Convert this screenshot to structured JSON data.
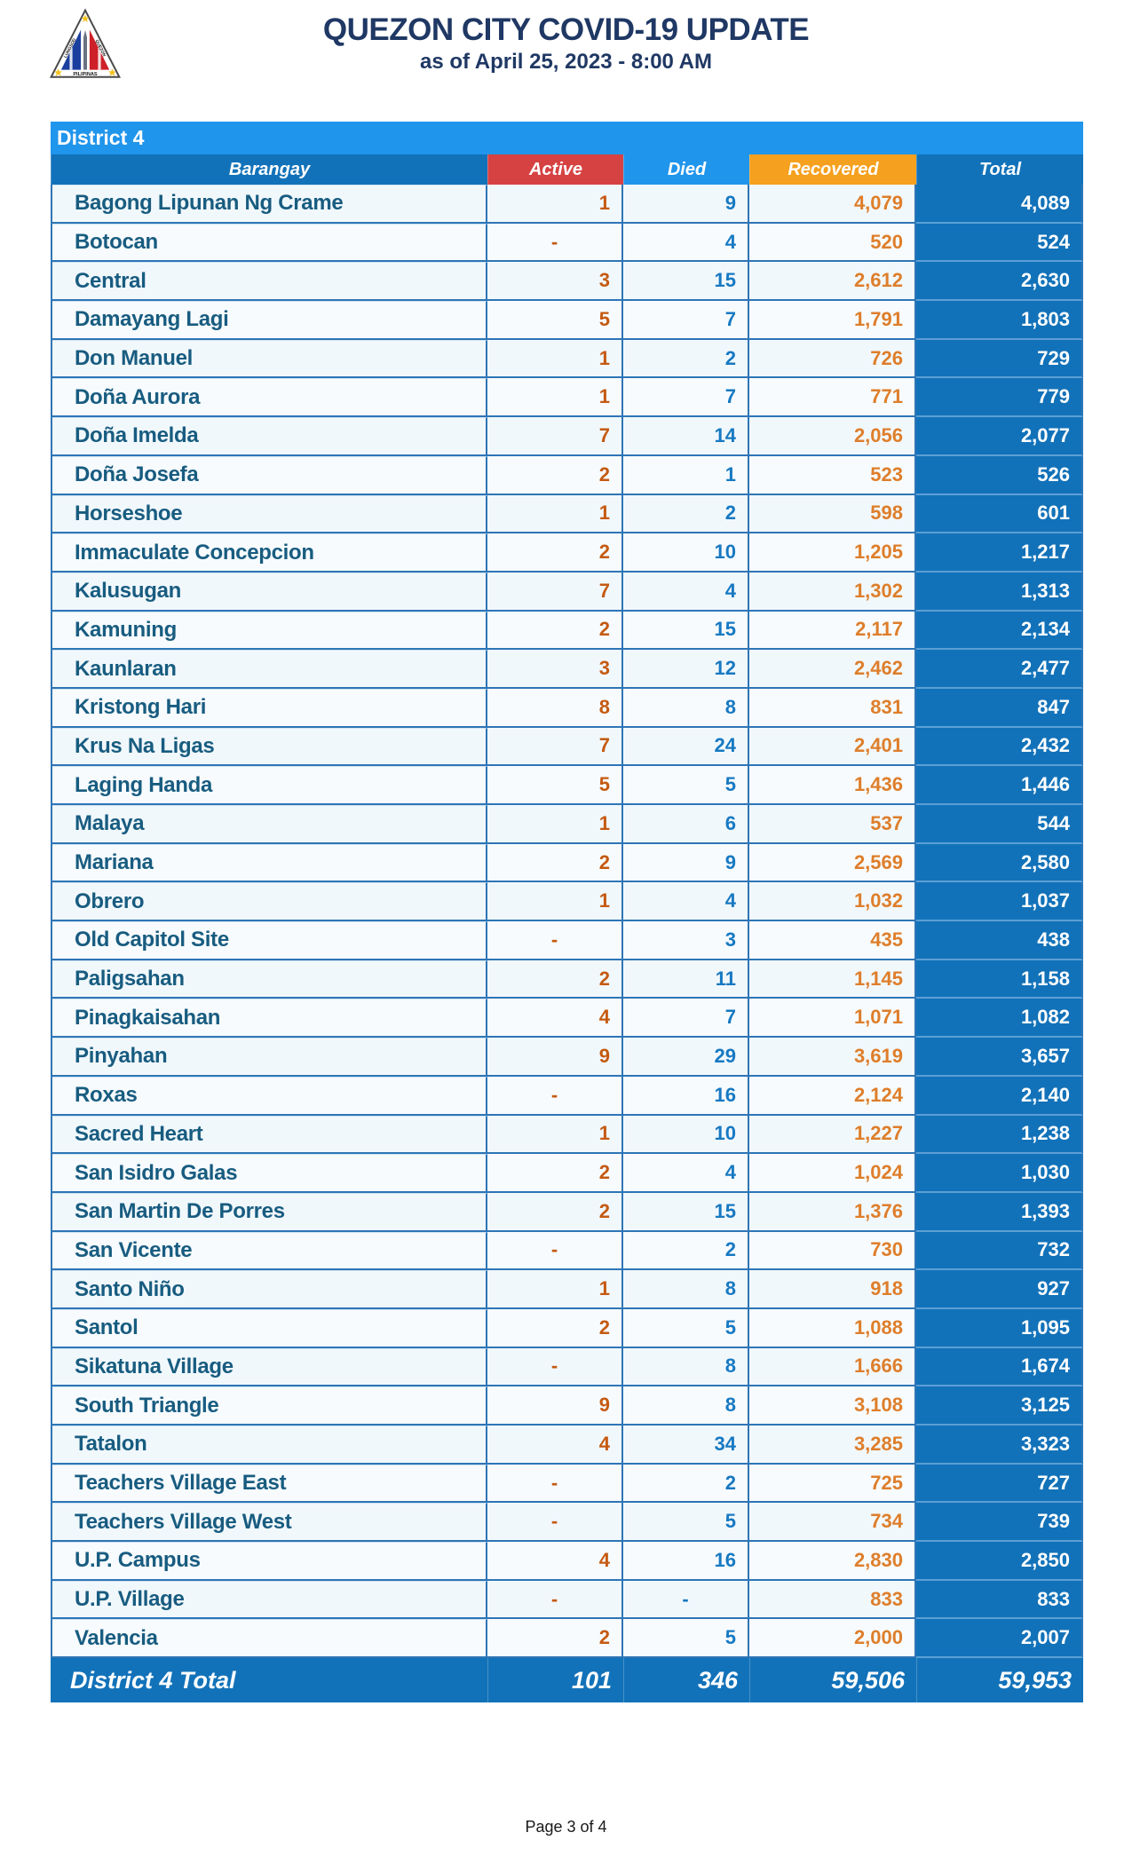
{
  "header": {
    "title": "QUEZON CITY COVID-19 UPDATE",
    "subtitle": "as of April 25, 2023 - 8:00 AM",
    "logo": {
      "arc_left": "LUNGSOD",
      "arc_right": "QUEZON",
      "bottom": "PILIPINAS"
    }
  },
  "table": {
    "district_label": "District 4",
    "columns": {
      "barangay": "Barangay",
      "active": "Active",
      "died": "Died",
      "recovered": "Recovered",
      "total": "Total"
    },
    "rows": [
      {
        "barangay": "Bagong Lipunan Ng Crame",
        "active": "1",
        "died": "9",
        "recovered": "4,079",
        "total": "4,089"
      },
      {
        "barangay": "Botocan",
        "active": "-",
        "died": "4",
        "recovered": "520",
        "total": "524"
      },
      {
        "barangay": "Central",
        "active": "3",
        "died": "15",
        "recovered": "2,612",
        "total": "2,630"
      },
      {
        "barangay": "Damayang Lagi",
        "active": "5",
        "died": "7",
        "recovered": "1,791",
        "total": "1,803"
      },
      {
        "barangay": "Don Manuel",
        "active": "1",
        "died": "2",
        "recovered": "726",
        "total": "729"
      },
      {
        "barangay": "Doña Aurora",
        "active": "1",
        "died": "7",
        "recovered": "771",
        "total": "779"
      },
      {
        "barangay": "Doña Imelda",
        "active": "7",
        "died": "14",
        "recovered": "2,056",
        "total": "2,077"
      },
      {
        "barangay": "Doña Josefa",
        "active": "2",
        "died": "1",
        "recovered": "523",
        "total": "526"
      },
      {
        "barangay": "Horseshoe",
        "active": "1",
        "died": "2",
        "recovered": "598",
        "total": "601"
      },
      {
        "barangay": "Immaculate Concepcion",
        "active": "2",
        "died": "10",
        "recovered": "1,205",
        "total": "1,217"
      },
      {
        "barangay": "Kalusugan",
        "active": "7",
        "died": "4",
        "recovered": "1,302",
        "total": "1,313"
      },
      {
        "barangay": "Kamuning",
        "active": "2",
        "died": "15",
        "recovered": "2,117",
        "total": "2,134"
      },
      {
        "barangay": "Kaunlaran",
        "active": "3",
        "died": "12",
        "recovered": "2,462",
        "total": "2,477"
      },
      {
        "barangay": "Kristong Hari",
        "active": "8",
        "died": "8",
        "recovered": "831",
        "total": "847"
      },
      {
        "barangay": "Krus Na Ligas",
        "active": "7",
        "died": "24",
        "recovered": "2,401",
        "total": "2,432"
      },
      {
        "barangay": "Laging Handa",
        "active": "5",
        "died": "5",
        "recovered": "1,436",
        "total": "1,446"
      },
      {
        "barangay": "Malaya",
        "active": "1",
        "died": "6",
        "recovered": "537",
        "total": "544"
      },
      {
        "barangay": "Mariana",
        "active": "2",
        "died": "9",
        "recovered": "2,569",
        "total": "2,580"
      },
      {
        "barangay": "Obrero",
        "active": "1",
        "died": "4",
        "recovered": "1,032",
        "total": "1,037"
      },
      {
        "barangay": "Old Capitol Site",
        "active": "-",
        "died": "3",
        "recovered": "435",
        "total": "438"
      },
      {
        "barangay": "Paligsahan",
        "active": "2",
        "died": "11",
        "recovered": "1,145",
        "total": "1,158"
      },
      {
        "barangay": "Pinagkaisahan",
        "active": "4",
        "died": "7",
        "recovered": "1,071",
        "total": "1,082"
      },
      {
        "barangay": "Pinyahan",
        "active": "9",
        "died": "29",
        "recovered": "3,619",
        "total": "3,657"
      },
      {
        "barangay": "Roxas",
        "active": "-",
        "died": "16",
        "recovered": "2,124",
        "total": "2,140"
      },
      {
        "barangay": "Sacred Heart",
        "active": "1",
        "died": "10",
        "recovered": "1,227",
        "total": "1,238"
      },
      {
        "barangay": "San Isidro Galas",
        "active": "2",
        "died": "4",
        "recovered": "1,024",
        "total": "1,030"
      },
      {
        "barangay": "San Martin De Porres",
        "active": "2",
        "died": "15",
        "recovered": "1,376",
        "total": "1,393"
      },
      {
        "barangay": "San Vicente",
        "active": "-",
        "died": "2",
        "recovered": "730",
        "total": "732"
      },
      {
        "barangay": "Santo Niño",
        "active": "1",
        "died": "8",
        "recovered": "918",
        "total": "927"
      },
      {
        "barangay": "Santol",
        "active": "2",
        "died": "5",
        "recovered": "1,088",
        "total": "1,095"
      },
      {
        "barangay": "Sikatuna Village",
        "active": "-",
        "died": "8",
        "recovered": "1,666",
        "total": "1,674"
      },
      {
        "barangay": "South Triangle",
        "active": "9",
        "died": "8",
        "recovered": "3,108",
        "total": "3,125"
      },
      {
        "barangay": "Tatalon",
        "active": "4",
        "died": "34",
        "recovered": "3,285",
        "total": "3,323"
      },
      {
        "barangay": "Teachers Village East",
        "active": "-",
        "died": "2",
        "recovered": "725",
        "total": "727"
      },
      {
        "barangay": "Teachers Village West",
        "active": "-",
        "died": "5",
        "recovered": "734",
        "total": "739"
      },
      {
        "barangay": "U.P. Campus",
        "active": "4",
        "died": "16",
        "recovered": "2,830",
        "total": "2,850"
      },
      {
        "barangay": "U.P. Village",
        "active": "-",
        "died": "-",
        "recovered": "833",
        "total": "833"
      },
      {
        "barangay": "Valencia",
        "active": "2",
        "died": "5",
        "recovered": "2,000",
        "total": "2,007"
      }
    ],
    "total_row": {
      "label": "District 4 Total",
      "active": "101",
      "died": "346",
      "recovered": "59,506",
      "total": "59,953"
    }
  },
  "footer": {
    "page": "Page 3 of 4"
  },
  "colors": {
    "title_navy": "#1F3864",
    "banner_blue": "#2095EC",
    "header_blue": "#1272B9",
    "active_red": "#D64242",
    "recovered_orange": "#F5A01E",
    "barangay_text": "#185C80",
    "active_text": "#C55A11",
    "died_text": "#1779C2",
    "recovered_text": "#DE7E2B",
    "grid_border": "#2E75B6"
  }
}
